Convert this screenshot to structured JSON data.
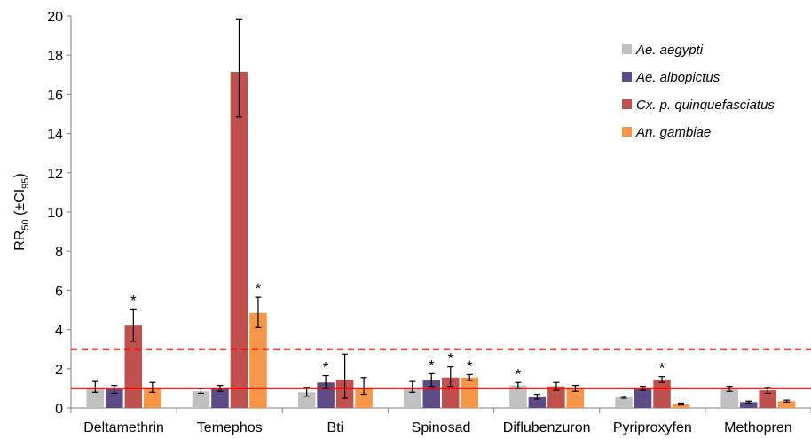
{
  "chart_data": {
    "type": "bar",
    "ylabel": "RR50 (±CI95)",
    "ylabel_parts": {
      "main": "RR",
      "sub1": "50",
      "open": " (±CI",
      "sub2": "95",
      "close": ")"
    },
    "ylim": [
      0,
      20
    ],
    "yticks": [
      0,
      2,
      4,
      6,
      8,
      10,
      12,
      14,
      16,
      18,
      20
    ],
    "grid": false,
    "legend_position": "top-right",
    "categories": [
      "Deltamethrin",
      "Temephos",
      "Bti",
      "Spinosad",
      "Diflubenzuron",
      "Pyriproxyfen",
      "Methopren"
    ],
    "series": [
      {
        "name": "Ae. aegypti",
        "color": "#c0c0c0",
        "values": [
          1.05,
          0.85,
          0.8,
          1.05,
          1.15,
          0.55,
          0.95
        ],
        "ci_low": [
          0.8,
          0.75,
          0.6,
          0.8,
          1.0,
          0.5,
          0.85
        ],
        "ci_high": [
          1.35,
          1.0,
          1.05,
          1.35,
          1.3,
          0.6,
          1.1
        ],
        "significant": [
          false,
          false,
          false,
          false,
          true,
          false,
          false
        ]
      },
      {
        "name": "Ae. albopictus",
        "color": "#5e4b85",
        "values": [
          0.95,
          1.0,
          1.3,
          1.4,
          0.55,
          1.0,
          0.3
        ],
        "ci_low": [
          0.75,
          0.85,
          1.0,
          1.1,
          0.45,
          0.9,
          0.25
        ],
        "ci_high": [
          1.15,
          1.15,
          1.65,
          1.75,
          0.7,
          1.1,
          0.35
        ],
        "significant": [
          false,
          false,
          true,
          true,
          false,
          false,
          false
        ]
      },
      {
        "name": "Cx. p. quinquefasciatus",
        "color": "#c0504d",
        "values": [
          4.2,
          17.15,
          1.45,
          1.55,
          1.1,
          1.45,
          0.9
        ],
        "ci_low": [
          3.4,
          14.85,
          0.5,
          1.1,
          0.9,
          1.3,
          0.75
        ],
        "ci_high": [
          5.05,
          19.85,
          2.75,
          2.1,
          1.3,
          1.6,
          1.05
        ],
        "significant": [
          true,
          false,
          false,
          true,
          false,
          true,
          false
        ]
      },
      {
        "name": "An. gambiae",
        "color": "#f79646",
        "values": [
          1.05,
          4.85,
          1.0,
          1.55,
          1.0,
          0.2,
          0.35
        ],
        "ci_low": [
          0.8,
          4.1,
          0.7,
          1.4,
          0.85,
          0.15,
          0.3
        ],
        "ci_high": [
          1.3,
          5.65,
          1.55,
          1.7,
          1.15,
          0.25,
          0.4
        ],
        "significant": [
          false,
          true,
          false,
          true,
          false,
          false,
          false
        ]
      }
    ],
    "reference_lines": [
      {
        "value": 1,
        "style": "solid",
        "color": "#ff0000"
      },
      {
        "value": 3,
        "style": "dashed",
        "color": "#ff0000"
      }
    ],
    "significance_marker": "*"
  }
}
